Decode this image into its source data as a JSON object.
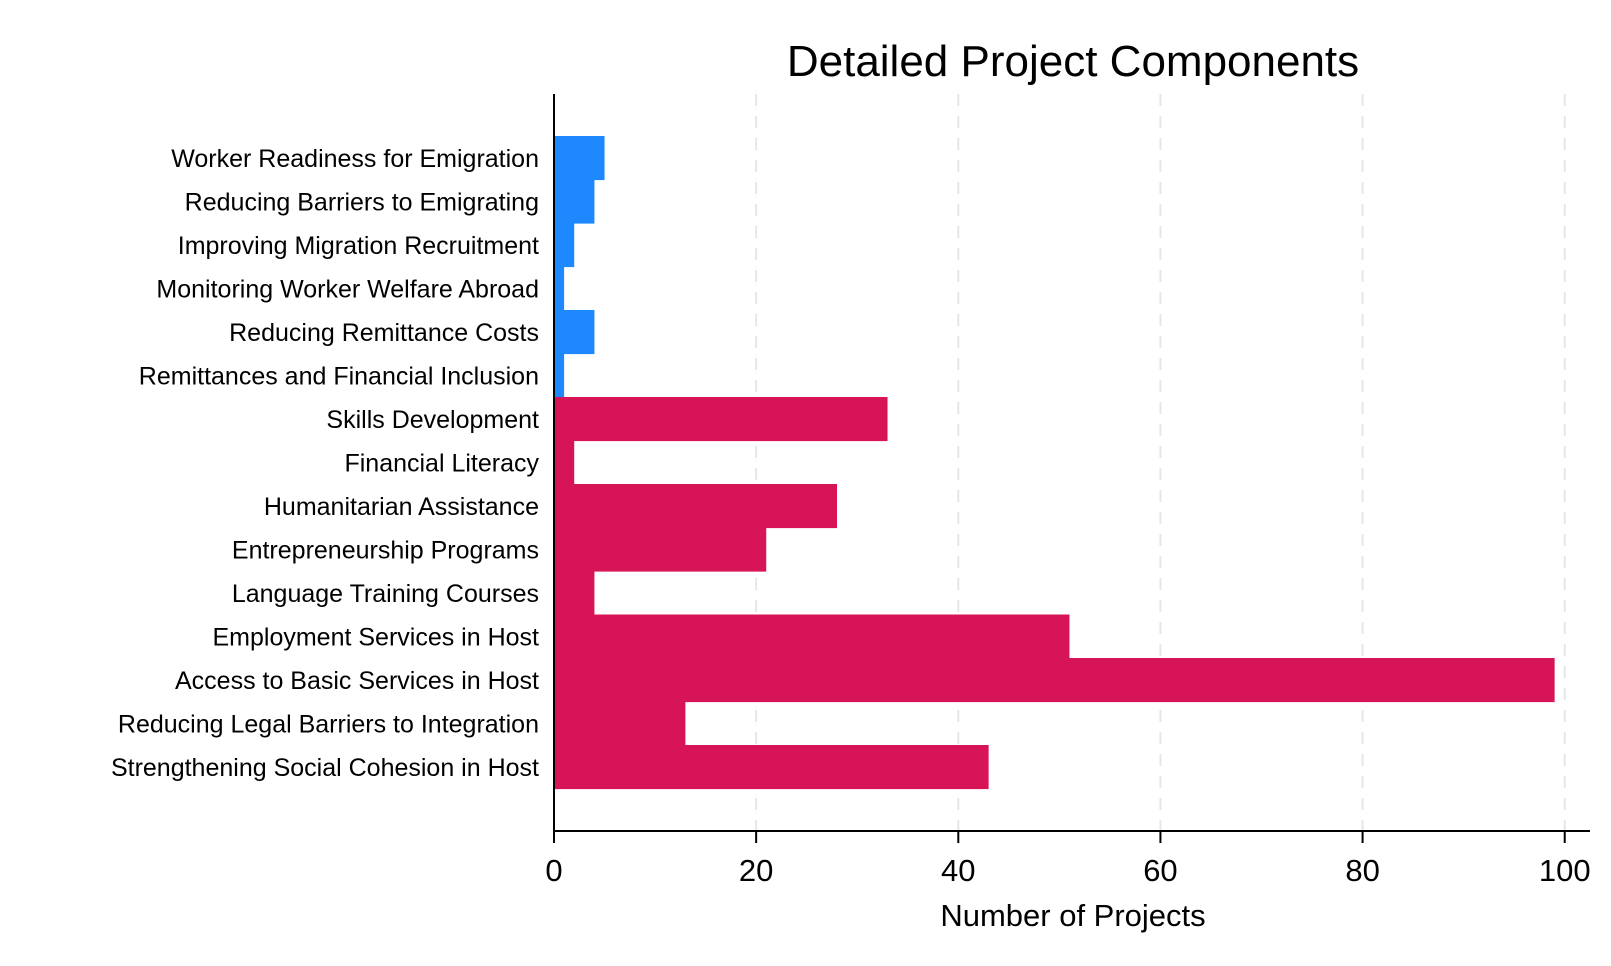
{
  "chart_data": {
    "type": "bar",
    "orientation": "horizontal",
    "title": "Detailed Project Components",
    "xlabel": "Number of Projects",
    "ylabel": "",
    "xlim": [
      0,
      102.5
    ],
    "xticks": [
      0,
      20,
      40,
      60,
      80,
      100
    ],
    "grid": "vertical dashed",
    "legend": "none",
    "colors": {
      "emigration": "#1E88FF",
      "integration": "#D81458"
    },
    "categories": [
      "Worker Readiness for Emigration",
      "Reducing Barriers to Emigrating",
      "Improving Migration Recruitment",
      "Monitoring Worker Welfare Abroad",
      "Reducing Remittance Costs",
      "Remittances and Financial Inclusion",
      "Skills Development",
      "Financial Literacy",
      "Humanitarian Assistance",
      "Entrepreneurship Programs",
      "Language Training Courses",
      "Employment Services in Host",
      "Access to Basic Services in Host",
      "Reducing Legal Barriers to Integration",
      "Strengthening Social Cohesion in Host"
    ],
    "values": [
      5,
      4,
      2,
      1,
      4,
      1,
      33,
      2,
      28,
      21,
      4,
      51,
      99,
      13,
      43
    ],
    "groups": [
      "emigration",
      "emigration",
      "emigration",
      "emigration",
      "emigration",
      "emigration",
      "integration",
      "integration",
      "integration",
      "integration",
      "integration",
      "integration",
      "integration",
      "integration",
      "integration"
    ]
  }
}
